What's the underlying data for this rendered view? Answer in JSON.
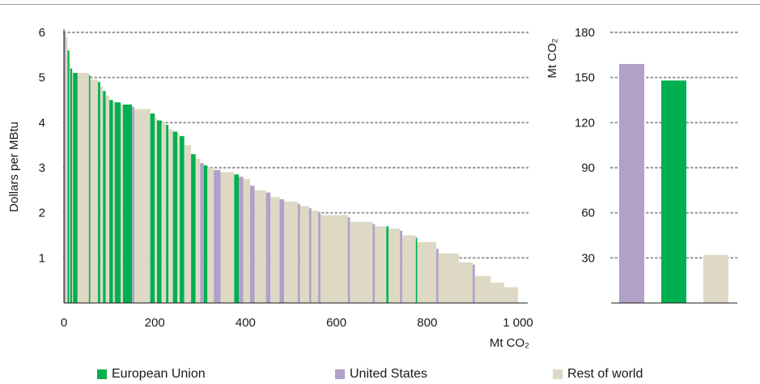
{
  "chart_data": [
    {
      "type": "area",
      "description_style": "marginal abatement cost curve",
      "ylabel": "Dollars per MBtu",
      "xlabel": "Mt CO₂",
      "xlim": [
        0,
        1000
      ],
      "ylim": [
        0,
        6
      ],
      "x_ticks": [
        "0",
        "200",
        "400",
        "600",
        "800",
        "1 000"
      ],
      "y_ticks": [
        "1",
        "2",
        "3",
        "4",
        "5",
        "6"
      ],
      "grid": "horizontal-dotted",
      "segments": [
        {
          "x0": 0,
          "x1": 4,
          "y": 6.0,
          "region": "United States"
        },
        {
          "x0": 4,
          "x1": 8,
          "y": 5.9,
          "region": "Rest of world"
        },
        {
          "x0": 8,
          "x1": 12,
          "y": 5.6,
          "region": "European Union"
        },
        {
          "x0": 12,
          "x1": 14,
          "y": 5.3,
          "region": "Rest of world"
        },
        {
          "x0": 14,
          "x1": 18,
          "y": 5.2,
          "region": "European Union"
        },
        {
          "x0": 18,
          "x1": 20,
          "y": 5.15,
          "region": "Rest of world"
        },
        {
          "x0": 20,
          "x1": 30,
          "y": 5.1,
          "region": "European Union"
        },
        {
          "x0": 30,
          "x1": 55,
          "y": 5.1,
          "region": "Rest of world"
        },
        {
          "x0": 55,
          "x1": 58,
          "y": 5.05,
          "region": "European Union"
        },
        {
          "x0": 58,
          "x1": 75,
          "y": 4.95,
          "region": "Rest of world"
        },
        {
          "x0": 75,
          "x1": 80,
          "y": 4.9,
          "region": "European Union"
        },
        {
          "x0": 80,
          "x1": 86,
          "y": 4.8,
          "region": "Rest of world"
        },
        {
          "x0": 86,
          "x1": 92,
          "y": 4.7,
          "region": "European Union"
        },
        {
          "x0": 92,
          "x1": 100,
          "y": 4.6,
          "region": "Rest of world"
        },
        {
          "x0": 100,
          "x1": 108,
          "y": 4.5,
          "region": "European Union"
        },
        {
          "x0": 108,
          "x1": 112,
          "y": 4.45,
          "region": "Rest of world"
        },
        {
          "x0": 112,
          "x1": 125,
          "y": 4.45,
          "region": "European Union"
        },
        {
          "x0": 125,
          "x1": 130,
          "y": 4.4,
          "region": "Rest of world"
        },
        {
          "x0": 130,
          "x1": 150,
          "y": 4.4,
          "region": "European Union"
        },
        {
          "x0": 150,
          "x1": 155,
          "y": 4.35,
          "region": "United States"
        },
        {
          "x0": 155,
          "x1": 190,
          "y": 4.3,
          "region": "Rest of world"
        },
        {
          "x0": 190,
          "x1": 200,
          "y": 4.2,
          "region": "European Union"
        },
        {
          "x0": 200,
          "x1": 205,
          "y": 4.1,
          "region": "Rest of world"
        },
        {
          "x0": 205,
          "x1": 215,
          "y": 4.05,
          "region": "European Union"
        },
        {
          "x0": 215,
          "x1": 225,
          "y": 4.0,
          "region": "Rest of world"
        },
        {
          "x0": 225,
          "x1": 230,
          "y": 3.95,
          "region": "European Union"
        },
        {
          "x0": 230,
          "x1": 240,
          "y": 3.85,
          "region": "Rest of world"
        },
        {
          "x0": 240,
          "x1": 250,
          "y": 3.8,
          "region": "European Union"
        },
        {
          "x0": 250,
          "x1": 255,
          "y": 3.75,
          "region": "Rest of world"
        },
        {
          "x0": 255,
          "x1": 265,
          "y": 3.7,
          "region": "European Union"
        },
        {
          "x0": 265,
          "x1": 280,
          "y": 3.5,
          "region": "Rest of world"
        },
        {
          "x0": 280,
          "x1": 290,
          "y": 3.3,
          "region": "European Union"
        },
        {
          "x0": 290,
          "x1": 300,
          "y": 3.2,
          "region": "Rest of world"
        },
        {
          "x0": 300,
          "x1": 308,
          "y": 3.1,
          "region": "United States"
        },
        {
          "x0": 308,
          "x1": 316,
          "y": 3.05,
          "region": "European Union"
        },
        {
          "x0": 316,
          "x1": 330,
          "y": 3.0,
          "region": "Rest of world"
        },
        {
          "x0": 330,
          "x1": 345,
          "y": 2.95,
          "region": "United States"
        },
        {
          "x0": 345,
          "x1": 375,
          "y": 2.9,
          "region": "Rest of world"
        },
        {
          "x0": 375,
          "x1": 385,
          "y": 2.85,
          "region": "European Union"
        },
        {
          "x0": 385,
          "x1": 395,
          "y": 2.8,
          "region": "United States"
        },
        {
          "x0": 395,
          "x1": 410,
          "y": 2.75,
          "region": "Rest of world"
        },
        {
          "x0": 410,
          "x1": 420,
          "y": 2.6,
          "region": "United States"
        },
        {
          "x0": 420,
          "x1": 445,
          "y": 2.5,
          "region": "Rest of world"
        },
        {
          "x0": 445,
          "x1": 455,
          "y": 2.45,
          "region": "United States"
        },
        {
          "x0": 455,
          "x1": 475,
          "y": 2.35,
          "region": "Rest of world"
        },
        {
          "x0": 475,
          "x1": 485,
          "y": 2.3,
          "region": "United States"
        },
        {
          "x0": 485,
          "x1": 515,
          "y": 2.25,
          "region": "Rest of world"
        },
        {
          "x0": 515,
          "x1": 520,
          "y": 2.2,
          "region": "United States"
        },
        {
          "x0": 520,
          "x1": 540,
          "y": 2.15,
          "region": "Rest of world"
        },
        {
          "x0": 540,
          "x1": 545,
          "y": 2.1,
          "region": "United States"
        },
        {
          "x0": 545,
          "x1": 560,
          "y": 2.05,
          "region": "Rest of world"
        },
        {
          "x0": 560,
          "x1": 565,
          "y": 2.0,
          "region": "United States"
        },
        {
          "x0": 565,
          "x1": 625,
          "y": 1.95,
          "region": "Rest of world"
        },
        {
          "x0": 625,
          "x1": 630,
          "y": 1.9,
          "region": "United States"
        },
        {
          "x0": 630,
          "x1": 680,
          "y": 1.8,
          "region": "Rest of world"
        },
        {
          "x0": 680,
          "x1": 685,
          "y": 1.75,
          "region": "United States"
        },
        {
          "x0": 685,
          "x1": 710,
          "y": 1.7,
          "region": "Rest of world"
        },
        {
          "x0": 710,
          "x1": 715,
          "y": 1.7,
          "region": "European Union"
        },
        {
          "x0": 715,
          "x1": 740,
          "y": 1.65,
          "region": "Rest of world"
        },
        {
          "x0": 740,
          "x1": 745,
          "y": 1.6,
          "region": "United States"
        },
        {
          "x0": 745,
          "x1": 775,
          "y": 1.5,
          "region": "Rest of world"
        },
        {
          "x0": 775,
          "x1": 778,
          "y": 1.45,
          "region": "European Union"
        },
        {
          "x0": 778,
          "x1": 820,
          "y": 1.35,
          "region": "Rest of world"
        },
        {
          "x0": 820,
          "x1": 825,
          "y": 1.2,
          "region": "United States"
        },
        {
          "x0": 825,
          "x1": 870,
          "y": 1.1,
          "region": "Rest of world"
        },
        {
          "x0": 870,
          "x1": 900,
          "y": 0.9,
          "region": "Rest of world"
        },
        {
          "x0": 900,
          "x1": 905,
          "y": 0.85,
          "region": "United States"
        },
        {
          "x0": 905,
          "x1": 940,
          "y": 0.6,
          "region": "Rest of world"
        },
        {
          "x0": 940,
          "x1": 970,
          "y": 0.45,
          "region": "Rest of world"
        },
        {
          "x0": 970,
          "x1": 1000,
          "y": 0.35,
          "region": "Rest of world"
        }
      ]
    },
    {
      "type": "bar",
      "ylabel": "Mt CO₂",
      "ylim": [
        0,
        180
      ],
      "y_ticks": [
        "30",
        "60",
        "90",
        "120",
        "150",
        "180"
      ],
      "grid": "horizontal-dotted",
      "categories": [
        "United States",
        "European Union",
        "Rest of world"
      ],
      "values": [
        159,
        148,
        32
      ]
    }
  ],
  "legend": [
    {
      "label": "European Union",
      "color": "#00b050"
    },
    {
      "label": "United States",
      "color": "#b1a0c7"
    },
    {
      "label": "Rest of world",
      "color": "#ddd9c4"
    }
  ]
}
